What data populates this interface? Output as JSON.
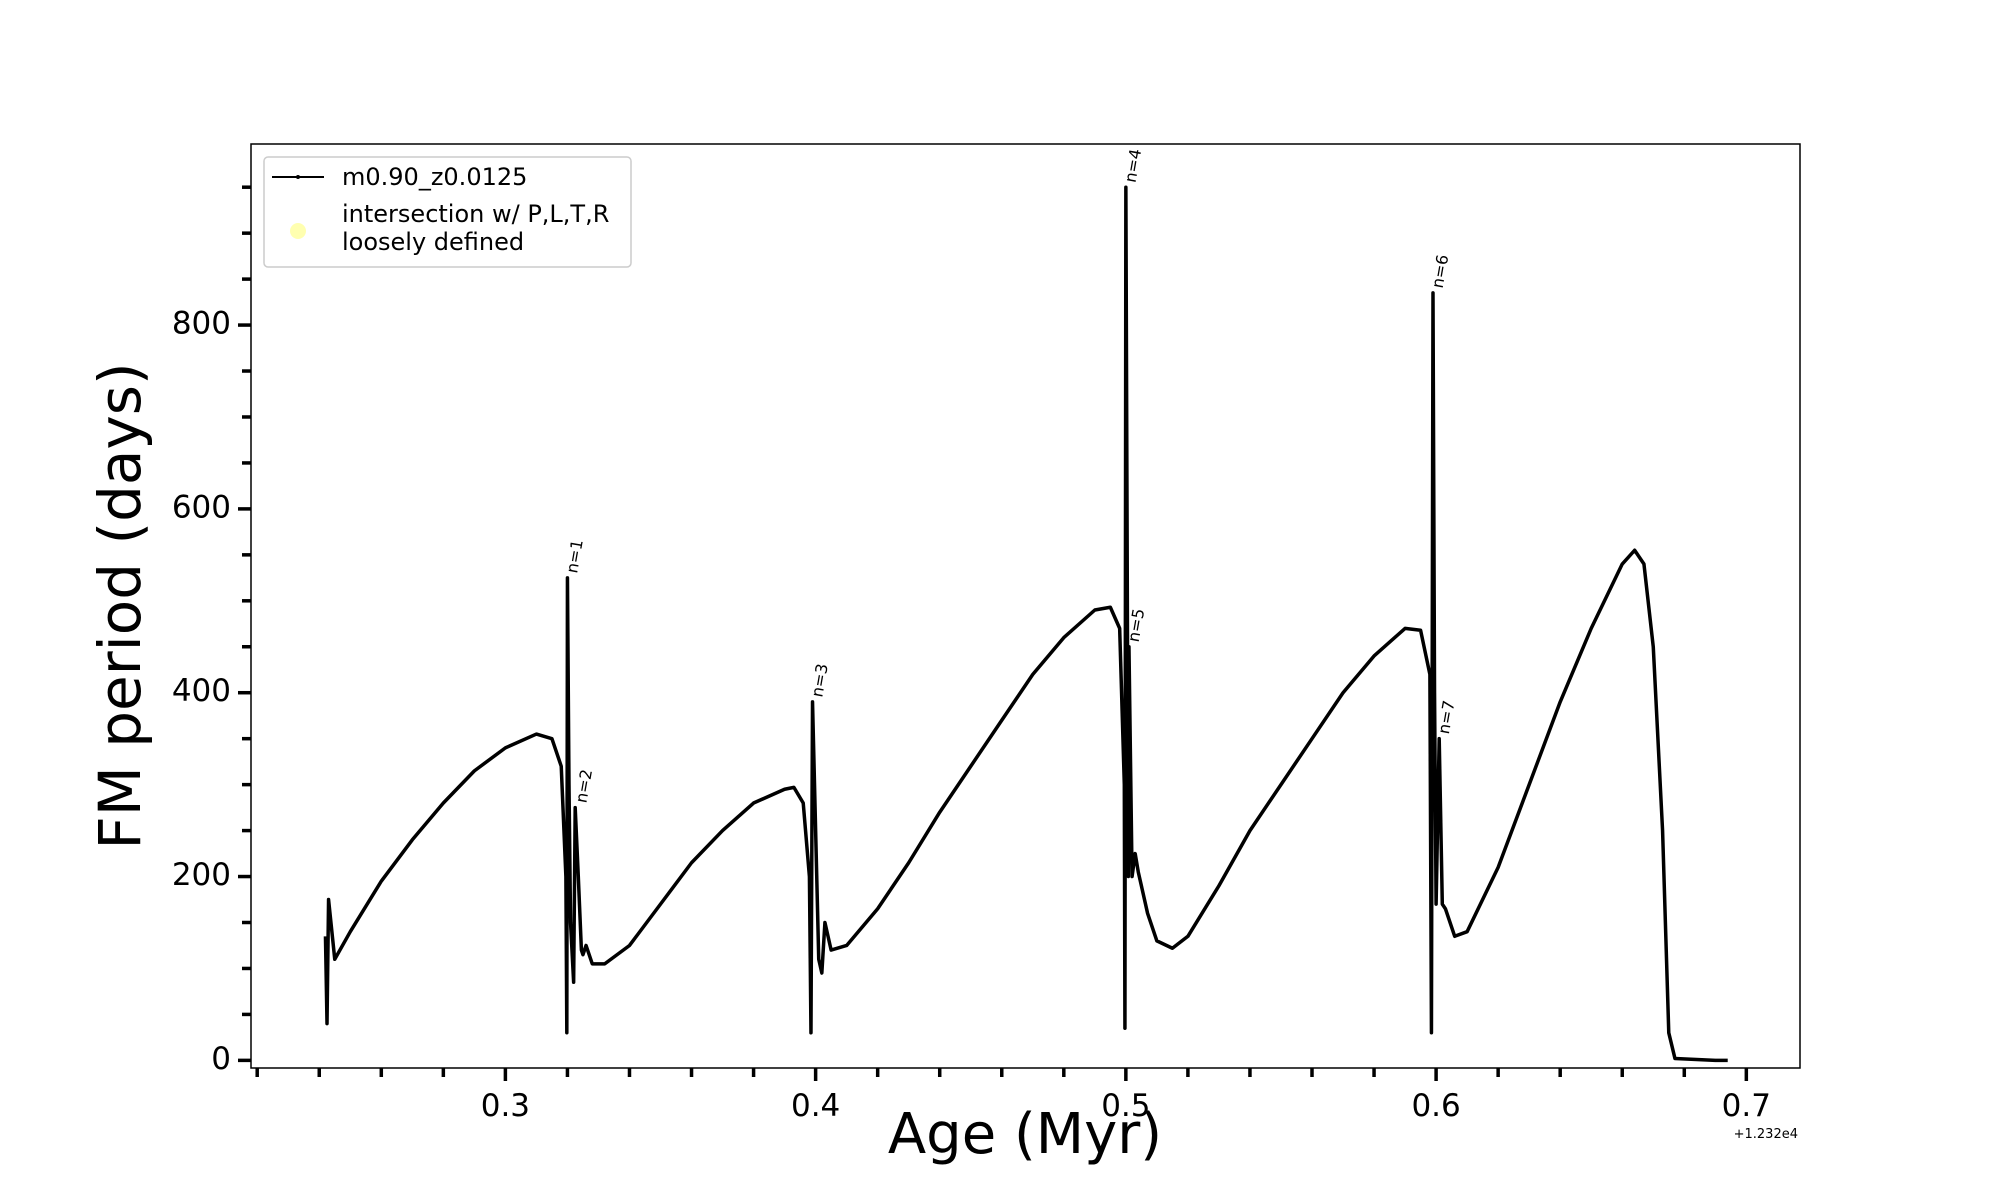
{
  "chart_data": {
    "type": "line",
    "xlabel": "Age (Myr)",
    "ylabel": "FM period (days)",
    "x_offset_label": "+1.232e4",
    "x": [
      0.242,
      0.2425,
      0.243,
      0.245,
      0.25,
      0.26,
      0.27,
      0.28,
      0.29,
      0.3,
      0.31,
      0.315,
      0.318,
      0.3195,
      0.3198,
      0.32,
      0.3205,
      0.321,
      0.322,
      0.3225,
      0.3235,
      0.3245,
      0.325,
      0.326,
      0.328,
      0.332,
      0.34,
      0.35,
      0.36,
      0.37,
      0.38,
      0.39,
      0.393,
      0.396,
      0.398,
      0.3985,
      0.399,
      0.4,
      0.401,
      0.402,
      0.403,
      0.405,
      0.41,
      0.42,
      0.43,
      0.44,
      0.45,
      0.46,
      0.47,
      0.48,
      0.49,
      0.495,
      0.498,
      0.4995,
      0.4997,
      0.5,
      0.5008,
      0.501,
      0.502,
      0.503,
      0.504,
      0.507,
      0.51,
      0.515,
      0.52,
      0.53,
      0.54,
      0.55,
      0.56,
      0.57,
      0.58,
      0.59,
      0.595,
      0.598,
      0.5985,
      0.599,
      0.5995,
      0.6,
      0.601,
      0.602,
      0.603,
      0.606,
      0.61,
      0.62,
      0.63,
      0.64,
      0.65,
      0.66,
      0.664,
      0.667,
      0.67,
      0.673,
      0.675,
      0.677,
      0.69,
      0.694
    ],
    "series": [
      {
        "name": "m0.90_z0.0125",
        "color": "#000000",
        "values": [
          135,
          40,
          175,
          110,
          140,
          195,
          240,
          280,
          315,
          340,
          355,
          350,
          320,
          200,
          30,
          525,
          300,
          150,
          85,
          275,
          200,
          120,
          115,
          125,
          105,
          105,
          125,
          170,
          215,
          250,
          280,
          295,
          297,
          280,
          200,
          30,
          390,
          250,
          110,
          95,
          150,
          120,
          125,
          165,
          215,
          270,
          320,
          370,
          420,
          460,
          490,
          493,
          470,
          300,
          35,
          950,
          200,
          450,
          200,
          225,
          205,
          160,
          130,
          122,
          135,
          190,
          250,
          300,
          350,
          400,
          440,
          470,
          468,
          420,
          30,
          835,
          400,
          170,
          350,
          170,
          165,
          135,
          140,
          210,
          300,
          390,
          470,
          540,
          555,
          540,
          450,
          250,
          30,
          2,
          0,
          0
        ]
      },
      {
        "name": "intersection w/ P,L,T,R\nloosely defined",
        "color": "#ffffb0",
        "x": [],
        "values": []
      }
    ],
    "annotations": [
      {
        "text": "n=1",
        "x": 0.3205,
        "y": 525
      },
      {
        "text": "n=2",
        "x": 0.3235,
        "y": 275
      },
      {
        "text": "n=3",
        "x": 0.3995,
        "y": 390
      },
      {
        "text": "n=4",
        "x": 0.5005,
        "y": 950
      },
      {
        "text": "n=5",
        "x": 0.5015,
        "y": 450
      },
      {
        "text": "n=6",
        "x": 0.5995,
        "y": 835
      },
      {
        "text": "n=7",
        "x": 0.6015,
        "y": 350
      }
    ],
    "xlim": [
      0.218,
      0.7173
    ],
    "ylim": [
      -8.3,
      997
    ],
    "xticks": [
      0.3,
      0.4,
      0.5,
      0.6,
      0.7
    ],
    "xticks_minor": [
      0.22,
      0.24,
      0.26,
      0.28,
      0.32,
      0.34,
      0.36,
      0.38,
      0.42,
      0.44,
      0.46,
      0.48,
      0.52,
      0.54,
      0.56,
      0.58,
      0.62,
      0.64,
      0.66,
      0.68
    ],
    "yticks": [
      0,
      200,
      400,
      600,
      800
    ],
    "yticks_minor": [
      50,
      100,
      150,
      250,
      300,
      350,
      450,
      500,
      550,
      650,
      700,
      750,
      850,
      900,
      950
    ],
    "legend": "upper left"
  }
}
